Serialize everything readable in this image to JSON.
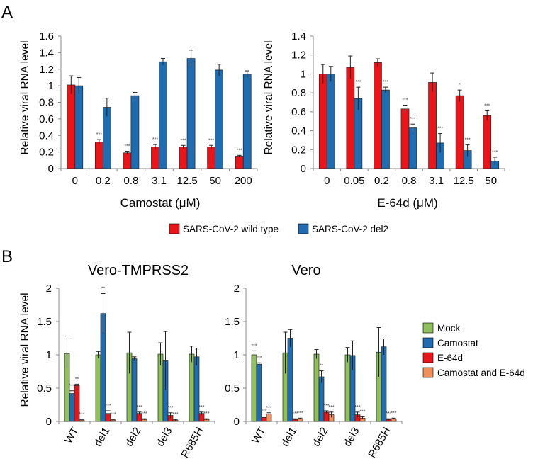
{
  "panel_labels": {
    "a": "A",
    "b": "B"
  },
  "colors": {
    "red": "#e8151b",
    "blue": "#1f6db0",
    "green": "#8fbf5e",
    "orange": "#ef8f5b",
    "grid": "#cccccc"
  },
  "legend_a": [
    {
      "label": "SARS-CoV-2 wild type",
      "color": "#e8151b"
    },
    {
      "label": "SARS-CoV-2 del2",
      "color": "#1f6db0"
    }
  ],
  "legend_b": [
    {
      "label": "Mock",
      "color": "#8fbf5e"
    },
    {
      "label": "Camostat",
      "color": "#1f6db0"
    },
    {
      "label": "E-64d",
      "color": "#e8151b"
    },
    {
      "label": "Camostat and E-64d",
      "color": "#ef8f5b"
    }
  ],
  "chart_data": [
    {
      "id": "A1",
      "type": "bar",
      "title": "",
      "xlabel": "Camostat (μM)",
      "ylabel": "Relative viral RNA level",
      "ylim": [
        0,
        1.6
      ],
      "yticks": [
        "0",
        "0.2",
        "0.4",
        "0.6",
        "0.8",
        "1",
        "1.2",
        "1.4",
        "1.6"
      ],
      "categories": [
        "0",
        "0.2",
        "0.8",
        "3.1",
        "12.5",
        "50",
        "200"
      ],
      "series": [
        {
          "name": "SARS-CoV-2 wild type",
          "color": "#e8151b",
          "values": [
            1.01,
            0.32,
            0.19,
            0.26,
            0.26,
            0.26,
            0.15
          ],
          "errors": [
            0.11,
            0.03,
            0.02,
            0.03,
            0.02,
            0.02,
            0.01
          ],
          "sig": [
            "",
            "***",
            "***",
            "***",
            "***",
            "***",
            "***"
          ]
        },
        {
          "name": "SARS-CoV-2 del2",
          "color": "#1f6db0",
          "values": [
            1.0,
            0.74,
            0.88,
            1.29,
            1.33,
            1.19,
            1.14
          ],
          "errors": [
            0.1,
            0.11,
            0.04,
            0.04,
            0.1,
            0.07,
            0.04
          ],
          "sig": [
            "",
            "",
            "",
            "",
            "",
            "",
            ""
          ]
        }
      ]
    },
    {
      "id": "A2",
      "type": "bar",
      "title": "",
      "xlabel": "E-64d (μM)",
      "ylabel": "Relative viral RNA level",
      "ylim": [
        0,
        1.4
      ],
      "yticks": [
        "0",
        "0.2",
        "0.4",
        "0.6",
        "0.8",
        "1",
        "1.2",
        "1.4"
      ],
      "categories": [
        "0",
        "0.05",
        "0.2",
        "0.8",
        "3.1",
        "12.5",
        "50"
      ],
      "series": [
        {
          "name": "SARS-CoV-2 wild type",
          "color": "#e8151b",
          "values": [
            1.0,
            1.07,
            1.12,
            0.63,
            0.91,
            0.77,
            0.56
          ],
          "errors": [
            0.1,
            0.12,
            0.04,
            0.04,
            0.1,
            0.06,
            0.05
          ],
          "sig": [
            "",
            "",
            "",
            "***",
            "",
            "*",
            "***"
          ]
        },
        {
          "name": "SARS-CoV-2 del2",
          "color": "#1f6db0",
          "values": [
            1.0,
            0.74,
            0.83,
            0.43,
            0.27,
            0.19,
            0.08
          ],
          "errors": [
            0.08,
            0.12,
            0.03,
            0.04,
            0.1,
            0.06,
            0.04
          ],
          "sig": [
            "",
            "***",
            "***",
            "***",
            "***",
            "***",
            "***"
          ]
        }
      ]
    },
    {
      "id": "B1",
      "type": "bar",
      "title": "Vero-TMPRSS2",
      "xlabel": "",
      "ylabel": "Relative viral RNA level",
      "ylim": [
        0,
        2
      ],
      "yticks": [
        "0",
        "0.5",
        "1",
        "1.5",
        "2"
      ],
      "categories": [
        "WT",
        "del1",
        "del2",
        "del3",
        "R685H"
      ],
      "series": [
        {
          "name": "Mock",
          "color": "#8fbf5e",
          "values": [
            1.02,
            1.0,
            1.03,
            1.01,
            1.01
          ],
          "errors": [
            0.22,
            0.05,
            0.31,
            0.17,
            0.12
          ],
          "sig": [
            "",
            "",
            "",
            "",
            ""
          ]
        },
        {
          "name": "Camostat",
          "color": "#1f6db0",
          "values": [
            0.42,
            1.62,
            0.94,
            0.91,
            0.97
          ],
          "errors": [
            0.04,
            0.3,
            0.03,
            0.44,
            0.13
          ],
          "sig": [
            "***",
            "**",
            "",
            "",
            ""
          ]
        },
        {
          "name": "E-64d",
          "color": "#e8151b",
          "values": [
            0.54,
            0.12,
            0.12,
            0.09,
            0.12
          ],
          "errors": [
            0.02,
            0.04,
            0.02,
            0.04,
            0.02
          ],
          "sig": [
            "**",
            "***",
            "***",
            "***",
            "***"
          ]
        },
        {
          "name": "Camostat and E-64d",
          "color": "#ef8f5b",
          "values": [
            0.02,
            0.02,
            0.03,
            0.02,
            0.03
          ],
          "errors": [
            0.01,
            0.01,
            0.01,
            0.01,
            0.01
          ],
          "sig": [
            "***",
            "***",
            "***",
            "***",
            "***"
          ]
        }
      ]
    },
    {
      "id": "B2",
      "type": "bar",
      "title": "Vero",
      "xlabel": "",
      "ylabel": "",
      "ylim": [
        0,
        2
      ],
      "yticks": [
        "0",
        "0.5",
        "1",
        "1.5",
        "2"
      ],
      "categories": [
        "WT",
        "del1",
        "del2",
        "del3",
        "R685H"
      ],
      "series": [
        {
          "name": "Mock",
          "color": "#8fbf5e",
          "values": [
            1.0,
            1.03,
            1.01,
            1.0,
            1.04
          ],
          "errors": [
            0.06,
            0.31,
            0.07,
            0.11,
            0.37
          ],
          "sig": [
            "***",
            "",
            "",
            "",
            ""
          ]
        },
        {
          "name": "Camostat",
          "color": "#1f6db0",
          "values": [
            0.86,
            1.25,
            0.67,
            0.99,
            1.12
          ],
          "errors": [
            0.02,
            0.13,
            0.09,
            0.22,
            0.12
          ],
          "sig": [
            "***",
            "",
            "**",
            "",
            ""
          ]
        },
        {
          "name": "E-64d",
          "color": "#e8151b",
          "values": [
            0.06,
            0.03,
            0.14,
            0.1,
            0.03
          ],
          "errors": [
            0.02,
            0.01,
            0.02,
            0.04,
            0.01
          ],
          "sig": [
            "***",
            "***",
            "***",
            "***",
            "***"
          ]
        },
        {
          "name": "Camostat and E-64d",
          "color": "#ef8f5b",
          "values": [
            0.11,
            0.04,
            0.1,
            0.05,
            0.04
          ],
          "errors": [
            0.02,
            0.01,
            0.04,
            0.02,
            0.01
          ],
          "sig": [
            "***",
            "***",
            "***",
            "***",
            "***"
          ]
        }
      ]
    }
  ]
}
